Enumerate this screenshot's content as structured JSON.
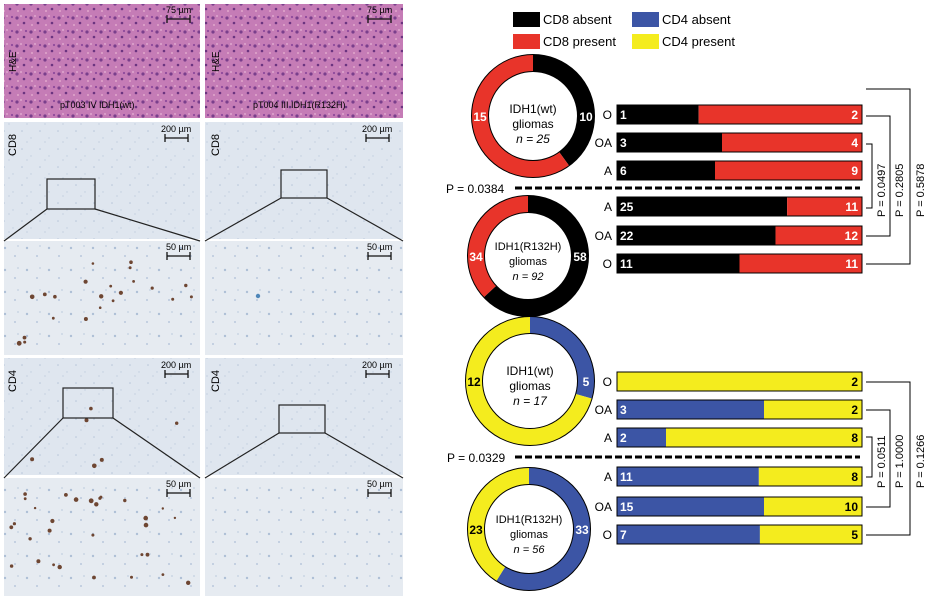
{
  "colors": {
    "cd8_absent": "#000000",
    "cd8_present": "#e8342a",
    "cd4_absent": "#3c55a5",
    "cd4_present": "#f4ec1e",
    "he_tissue": "#c77fb8",
    "ihc_tissue": "#dfe5ee"
  },
  "micrographs": {
    "row_labels": [
      "H&E",
      "CD8",
      "",
      "CD4",
      ""
    ],
    "scale_75": "75 µm",
    "scale_200": "200 µm",
    "scale_50": "50 µm",
    "sample_left": "pT003  IV IDH1(wt)",
    "sample_right": "pT004  III IDH1(R132H)"
  },
  "legend": {
    "cd8_absent": "CD8 absent",
    "cd8_present": "CD8 present",
    "cd4_absent": "CD4 absent",
    "cd4_present": "CD4 present"
  },
  "cd8": {
    "wt_donut": {
      "line1": "IDH1(wt)",
      "line2": "gliomas",
      "n_label": "n = 25",
      "absent": 10,
      "present": 15
    },
    "mut_donut": {
      "line1": "IDH1(R132H)",
      "line2": "gliomas",
      "n_label": "n = 92",
      "absent": 58,
      "present": 34
    },
    "wt_bars": [
      {
        "label": "O",
        "absent": 1,
        "present": 2
      },
      {
        "label": "OA",
        "absent": 3,
        "present": 4
      },
      {
        "label": "A",
        "absent": 6,
        "present": 9
      }
    ],
    "mut_bars": [
      {
        "label": "A",
        "absent": 25,
        "present": 11
      },
      {
        "label": "OA",
        "absent": 22,
        "present": 12
      },
      {
        "label": "O",
        "absent": 11,
        "present": 11
      }
    ],
    "p_overall": "P = 0.0384",
    "p_brackets": [
      "P = 0.0497",
      "P = 0.2805",
      "P = 0.5878"
    ]
  },
  "cd4": {
    "wt_donut": {
      "line1": "IDH1(wt)",
      "line2": "gliomas",
      "n_label": "n = 17",
      "absent": 5,
      "present": 12
    },
    "mut_donut": {
      "line1": "IDH1(R132H)",
      "line2": "gliomas",
      "n_label": "n = 56",
      "absent": 33,
      "present": 23
    },
    "wt_bars": [
      {
        "label": "O",
        "absent": 0,
        "present": 2
      },
      {
        "label": "OA",
        "absent": 3,
        "present": 2
      },
      {
        "label": "A",
        "absent": 2,
        "present": 8
      }
    ],
    "mut_bars": [
      {
        "label": "A",
        "absent": 11,
        "present": 8
      },
      {
        "label": "OA",
        "absent": 15,
        "present": 10
      },
      {
        "label": "O",
        "absent": 7,
        "present": 5
      }
    ],
    "p_overall": "P = 0.0329",
    "p_brackets": [
      "P = 0.0511",
      "P = 1.0000",
      "P = 0.1266"
    ]
  }
}
